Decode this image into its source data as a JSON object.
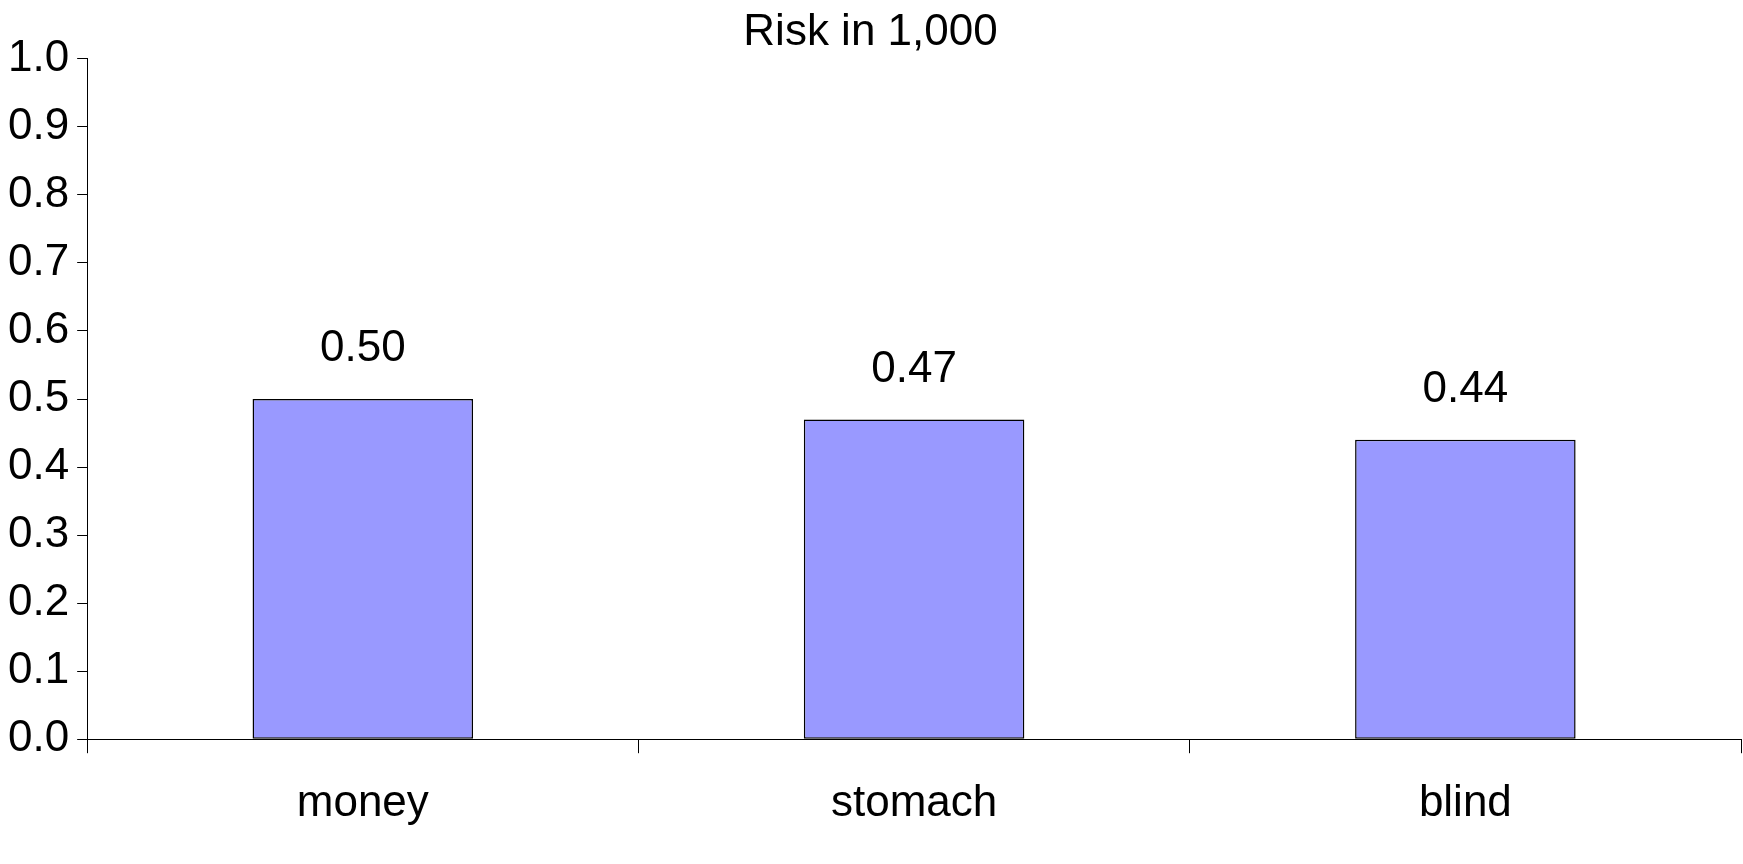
{
  "chart_data": {
    "type": "bar",
    "title": "Risk in 1,000",
    "categories": [
      "money",
      "stomach",
      "blind"
    ],
    "values": [
      0.5,
      0.47,
      0.44
    ],
    "value_labels": [
      "0.50",
      "0.47",
      "0.44"
    ],
    "color": "#9999ff",
    "ylim": [
      0,
      1
    ],
    "yticks": [
      {
        "value": 0,
        "label": "0.0"
      },
      0.1,
      0.2,
      0.3,
      0.4,
      0.5,
      0.6,
      0.7,
      0.8,
      0.9,
      {
        "value": 1,
        "label": "1.0"
      }
    ],
    "grid": false,
    "legend": false
  }
}
